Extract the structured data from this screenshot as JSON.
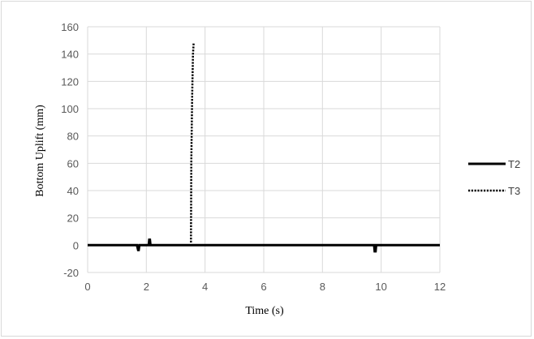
{
  "chart_data": {
    "type": "line",
    "xlabel": "Time (s)",
    "ylabel": "Bottom Uplift (mm)",
    "xlim": [
      0,
      12
    ],
    "ylim": [
      -20,
      160
    ],
    "xticks": [
      0,
      2,
      4,
      6,
      8,
      10,
      12
    ],
    "yticks": [
      -20,
      0,
      20,
      40,
      60,
      80,
      100,
      120,
      140,
      160
    ],
    "grid": true,
    "legend_position": "right",
    "series": [
      {
        "name": "T2",
        "color": "#000000",
        "style": "solid",
        "points": [
          [
            0,
            0
          ],
          [
            1.68,
            0
          ],
          [
            1.72,
            -3.5
          ],
          [
            1.74,
            -3.5
          ],
          [
            1.76,
            0
          ],
          [
            2.08,
            0
          ],
          [
            2.1,
            4
          ],
          [
            2.12,
            4
          ],
          [
            2.14,
            0
          ],
          [
            9.76,
            0
          ],
          [
            9.78,
            -4.5
          ],
          [
            9.81,
            -4.5
          ],
          [
            9.83,
            0
          ],
          [
            12,
            0
          ]
        ]
      },
      {
        "name": "T3",
        "color": "#000000",
        "style": "dotted",
        "points": [
          [
            3.52,
            2
          ],
          [
            3.53,
            60
          ],
          [
            3.56,
            110
          ],
          [
            3.59,
            140
          ],
          [
            3.61,
            148
          ]
        ]
      }
    ]
  }
}
